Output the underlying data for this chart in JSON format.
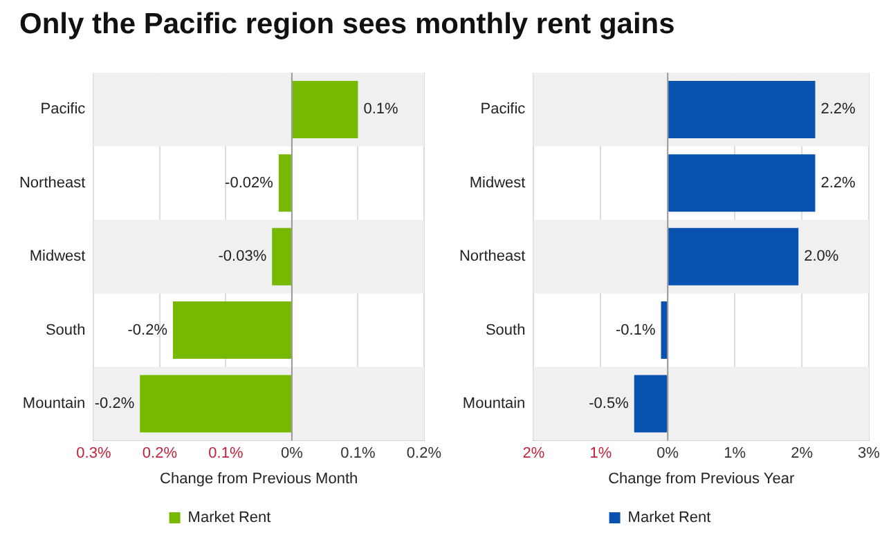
{
  "chart_data": [
    {
      "type": "bar",
      "title": "Only the Pacific region sees monthly rent gains",
      "orientation": "horizontal",
      "categories": [
        "Pacific",
        "Northeast",
        "Midwest",
        "South",
        "Mountain"
      ],
      "series": [
        {
          "name": "Market Rent",
          "color": "#77b800",
          "values": [
            0.1,
            -0.02,
            -0.03,
            -0.18,
            -0.23
          ],
          "value_labels": [
            "0.1%",
            "-0.02%",
            "-0.03%",
            "-0.2%",
            "-0.2%"
          ]
        }
      ],
      "xlabel": "Change from Previous Month",
      "xlim": [
        -0.3,
        0.2
      ],
      "xticks": [
        {
          "value": -0.3,
          "label": "0.3%"
        },
        {
          "value": -0.2,
          "label": "0.2%"
        },
        {
          "value": -0.1,
          "label": "0.1%"
        },
        {
          "value": 0,
          "label": "0%"
        },
        {
          "value": 0.1,
          "label": "0.1%"
        },
        {
          "value": 0.2,
          "label": "0.2%"
        }
      ],
      "grid": "x",
      "legend": "bottom"
    },
    {
      "type": "bar",
      "orientation": "horizontal",
      "categories": [
        "Pacific",
        "Midwest",
        "Northeast",
        "South",
        "Mountain"
      ],
      "series": [
        {
          "name": "Market Rent",
          "color": "#0a52b0",
          "values": [
            2.2,
            2.2,
            1.95,
            -0.1,
            -0.5
          ],
          "value_labels": [
            "2.2%",
            "2.2%",
            "2.0%",
            "-0.1%",
            "-0.5%"
          ]
        }
      ],
      "xlabel": "Change from Previous Year",
      "xlim": [
        -2,
        3
      ],
      "xticks": [
        {
          "value": -2,
          "label": "2%"
        },
        {
          "value": -1,
          "label": "1%"
        },
        {
          "value": 0,
          "label": "0%"
        },
        {
          "value": 1,
          "label": "1%"
        },
        {
          "value": 2,
          "label": "2%"
        },
        {
          "value": 3,
          "label": "3%"
        }
      ],
      "grid": "x",
      "legend": "bottom"
    }
  ]
}
